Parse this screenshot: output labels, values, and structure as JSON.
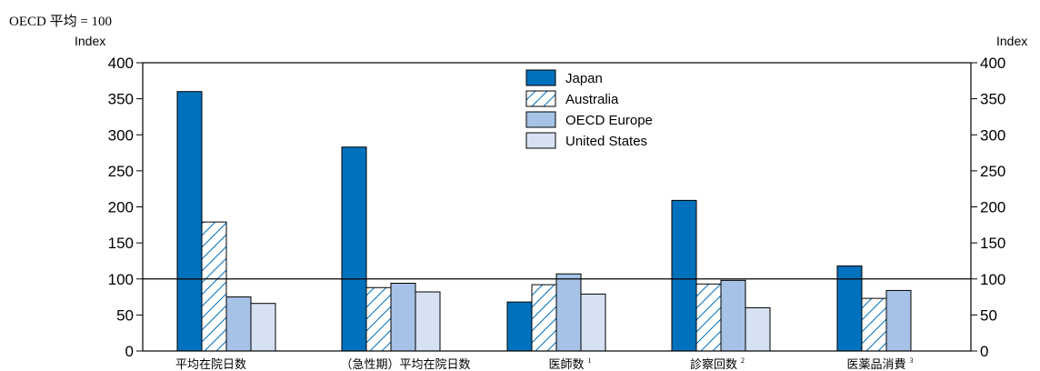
{
  "chart_data": {
    "type": "bar",
    "title": "OECD 平均 = 100",
    "ylabel_left": "Index",
    "ylabel_right": "Index",
    "ylim": [
      0,
      400
    ],
    "yticks": [
      0,
      50,
      100,
      150,
      200,
      250,
      300,
      350,
      400
    ],
    "reference_line": 100,
    "grid": false,
    "legend_placement": "top-center",
    "categories": [
      "平均在院日数",
      "（急性期）平均在院日数",
      "医師数",
      "診察回数",
      "医薬品消費"
    ],
    "category_superscripts": [
      "",
      "",
      "1",
      "2",
      "3"
    ],
    "series": [
      {
        "name": "Japan",
        "values": [
          360,
          283,
          68,
          209,
          118
        ],
        "style": "solid",
        "color": "#0071bc"
      },
      {
        "name": "Australia",
        "values": [
          179,
          88,
          92,
          93,
          73
        ],
        "style": "hatched",
        "color": "#0071bc"
      },
      {
        "name": "OECD Europe",
        "values": [
          75,
          94,
          107,
          98,
          84
        ],
        "style": "solid",
        "color": "#a6c2e6"
      },
      {
        "name": "United States",
        "values": [
          66,
          82,
          79,
          60,
          null
        ],
        "style": "solid",
        "color": "#d6e2f3"
      }
    ]
  }
}
